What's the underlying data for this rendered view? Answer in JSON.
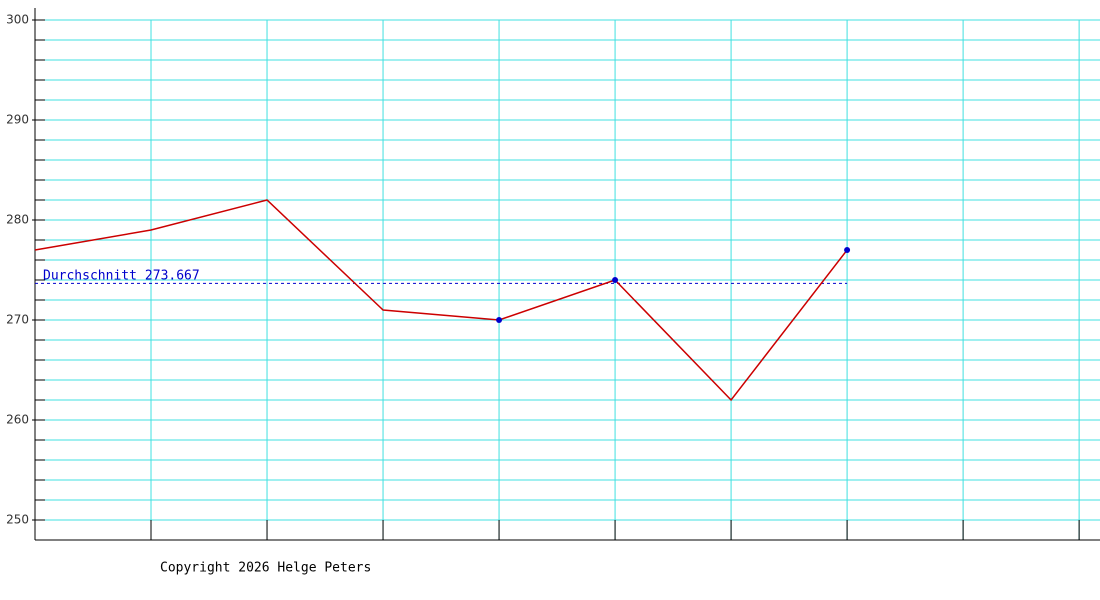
{
  "chart_data": {
    "type": "line",
    "x": [
      0,
      1,
      2,
      3,
      4,
      5,
      6,
      7
    ],
    "series": [
      {
        "color": "#cc0000",
        "values": [
          277,
          279,
          282,
          271,
          270,
          274,
          262,
          277
        ],
        "markers": [
          false,
          false,
          false,
          false,
          true,
          true,
          false,
          true
        ],
        "marker_color": "#0000cc"
      }
    ],
    "xlim": [
      0,
      9.18
    ],
    "xticks": [
      1,
      2,
      3,
      4,
      5,
      6,
      7,
      8,
      9
    ],
    "ylim": [
      248,
      301.2
    ],
    "yticks": [
      250,
      260,
      270,
      280,
      290,
      300
    ],
    "ygrid": [
      250,
      252,
      254,
      256,
      258,
      260,
      262,
      264,
      266,
      268,
      270,
      272,
      274,
      276,
      278,
      280,
      282,
      284,
      286,
      288,
      290,
      292,
      294,
      296,
      298,
      300
    ],
    "grid": true,
    "grid_color": "#40e0e0",
    "average": {
      "label": "Durchschnitt",
      "value": 273.667,
      "color": "#0000cc"
    },
    "footer": "Copyright 2026 Helge Peters"
  }
}
